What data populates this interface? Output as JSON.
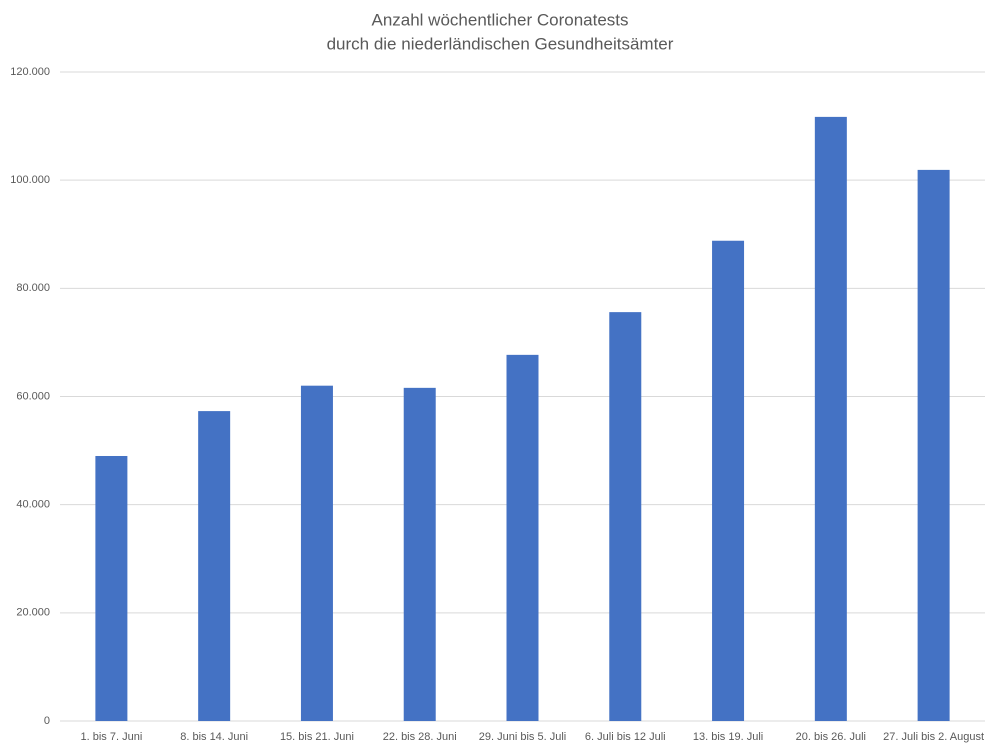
{
  "chart_data": {
    "type": "bar",
    "title": [
      "Anzahl wöchentlicher Coronatests",
      "durch die niederländischen Gesundheitsämter"
    ],
    "categories": [
      "1. bis 7. Juni",
      "8. bis 14. Juni",
      "15. bis 21. Juni",
      "22. bis 28. Juni",
      "29. Juni bis 5. Juli",
      "6. Juli bis 12 Juli",
      "13. bis 19. Juli",
      "20. bis 26. Juli",
      "27. Juli bis 2. August"
    ],
    "values": [
      49000,
      57300,
      62000,
      61600,
      67700,
      75600,
      88800,
      111700,
      101900
    ],
    "color": "#4472c4",
    "ylim": [
      0,
      120000
    ],
    "yticks": [
      0,
      {
        "value": 20000,
        "label": "20.000"
      },
      {
        "value": 40000,
        "label": "40.000"
      },
      {
        "value": 60000,
        "label": "60.000"
      },
      {
        "value": 80000,
        "label": "80.000"
      },
      {
        "value": 100000,
        "label": "100.000"
      },
      {
        "value": 120000,
        "label": "120.000"
      }
    ],
    "grid": true
  }
}
